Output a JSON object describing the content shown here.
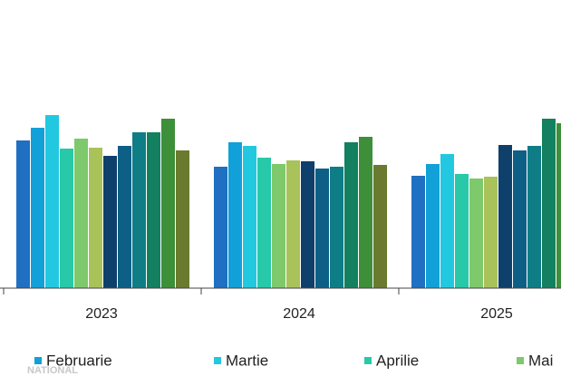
{
  "chart_data": {
    "type": "bar",
    "categories": [
      "2023",
      "2024",
      "2025"
    ],
    "ylim": [
      0,
      230
    ],
    "series": [
      {
        "color": "#1f6fc2",
        "values": [
          163,
          134,
          124
        ]
      },
      {
        "name": "Februarie",
        "color": "#12a0d8",
        "values": [
          177,
          161,
          137
        ]
      },
      {
        "name": "Martie",
        "color": "#22c8e0",
        "values": [
          191,
          157,
          148
        ]
      },
      {
        "name": "Aprilie",
        "color": "#27c9a8",
        "values": [
          154,
          144,
          126
        ]
      },
      {
        "name": "Mai",
        "color": "#7dc96b",
        "values": [
          165,
          137,
          121
        ]
      },
      {
        "color": "#a9c25a",
        "values": [
          155,
          141,
          123
        ]
      },
      {
        "color": "#0f3f6b",
        "values": [
          146,
          140,
          158
        ]
      },
      {
        "color": "#0e5f86",
        "values": [
          157,
          132,
          152
        ]
      },
      {
        "color": "#0f7d86",
        "values": [
          172,
          134,
          157
        ]
      },
      {
        "color": "#138060",
        "values": [
          172,
          161,
          187
        ]
      },
      {
        "color": "#3d8f3a",
        "values": [
          187,
          167,
          182
        ]
      },
      {
        "color": "#6a7a2f",
        "values": [
          152,
          136,
          null
        ]
      }
    ]
  },
  "watermark": "NATIONAL"
}
